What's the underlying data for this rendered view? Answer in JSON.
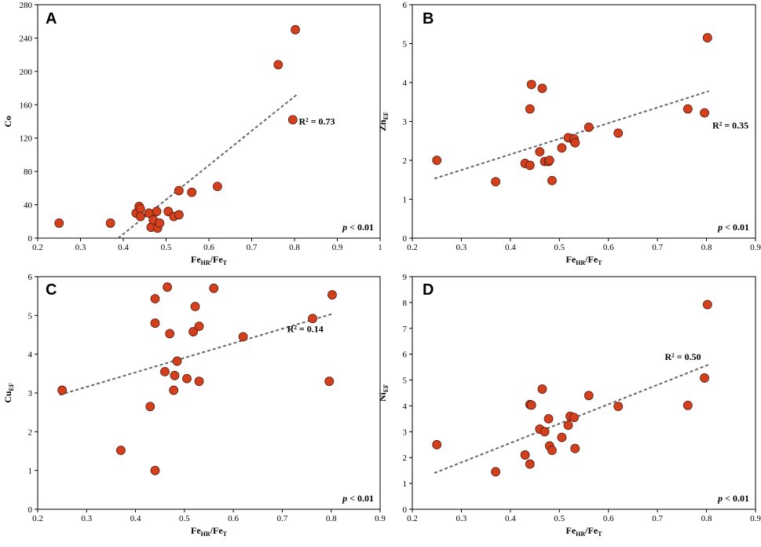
{
  "colors": {
    "point": "#d2401e",
    "trend": "#666666"
  },
  "chart_data": [
    {
      "type": "scatter",
      "panel": "A",
      "title": "",
      "xlabel": "Fe",
      "xlabel_sub": "HR",
      "xlabel_mid": "/Fe",
      "xlabel_sub2": "T",
      "ylabel": "Co",
      "ylabel_sub": "",
      "xlim": [
        0.2,
        1.0
      ],
      "ylim": [
        0,
        280
      ],
      "xticks": [
        0.2,
        0.3,
        0.4,
        0.5,
        0.6,
        0.7,
        0.8,
        0.9,
        1
      ],
      "xtick_labels": [
        "0.2",
        "0.3",
        "0.4",
        "0.5",
        "0.6",
        "0.7",
        "0.8",
        "0.9",
        "1"
      ],
      "yticks": [
        0,
        40,
        80,
        120,
        160,
        200,
        240,
        280
      ],
      "ytick_labels": [
        "0",
        "40",
        "80",
        "120",
        "160",
        "200",
        "240",
        "280"
      ],
      "points": [
        [
          0.25,
          18
        ],
        [
          0.37,
          18
        ],
        [
          0.43,
          30
        ],
        [
          0.437,
          38
        ],
        [
          0.44,
          35
        ],
        [
          0.44,
          26
        ],
        [
          0.46,
          30
        ],
        [
          0.465,
          13
        ],
        [
          0.47,
          22
        ],
        [
          0.478,
          32
        ],
        [
          0.48,
          12
        ],
        [
          0.485,
          18
        ],
        [
          0.505,
          32
        ],
        [
          0.518,
          26
        ],
        [
          0.53,
          57
        ],
        [
          0.53,
          28
        ],
        [
          0.56,
          55
        ],
        [
          0.62,
          62
        ],
        [
          0.762,
          208
        ],
        [
          0.796,
          142
        ],
        [
          0.802,
          250
        ]
      ],
      "trend": [
        [
          0.388,
          0
        ],
        [
          0.805,
          172
        ]
      ],
      "r2_label": "R² = 0.73",
      "r2_at": [
        0.81,
        140
      ],
      "p_label": "< 0.01",
      "p_prefix": "p"
    },
    {
      "type": "scatter",
      "panel": "B",
      "title": "",
      "xlabel": "Fe",
      "xlabel_sub": "HR",
      "xlabel_mid": "/Fe",
      "xlabel_sub2": "T",
      "ylabel": "Zn",
      "ylabel_sub": "EF",
      "xlim": [
        0.2,
        0.9
      ],
      "ylim": [
        0,
        6
      ],
      "xticks": [
        0.2,
        0.3,
        0.4,
        0.5,
        0.6,
        0.7,
        0.8,
        0.9
      ],
      "xtick_labels": [
        "0.2",
        "0.3",
        "0.4",
        "0.5",
        "0.6",
        "0.7",
        "0.8",
        "0.9"
      ],
      "yticks": [
        0,
        1,
        2,
        3,
        4,
        5,
        6
      ],
      "ytick_labels": [
        "0",
        "1",
        "2",
        "3",
        "4",
        "5",
        "6"
      ],
      "points": [
        [
          0.25,
          2.0
        ],
        [
          0.37,
          1.45
        ],
        [
          0.43,
          1.92
        ],
        [
          0.44,
          1.87
        ],
        [
          0.44,
          3.32
        ],
        [
          0.443,
          3.95
        ],
        [
          0.46,
          2.22
        ],
        [
          0.465,
          3.85
        ],
        [
          0.47,
          1.97
        ],
        [
          0.478,
          1.97
        ],
        [
          0.48,
          2.0
        ],
        [
          0.485,
          1.48
        ],
        [
          0.505,
          2.32
        ],
        [
          0.518,
          2.58
        ],
        [
          0.53,
          2.5
        ],
        [
          0.53,
          2.55
        ],
        [
          0.532,
          2.45
        ],
        [
          0.56,
          2.85
        ],
        [
          0.62,
          2.7
        ],
        [
          0.762,
          3.32
        ],
        [
          0.796,
          3.22
        ],
        [
          0.802,
          5.15
        ]
      ],
      "trend": [
        [
          0.245,
          1.53
        ],
        [
          0.805,
          3.78
        ]
      ],
      "r2_label": "R² = 0.35",
      "r2_at": [
        0.812,
        2.9
      ],
      "p_label": "< 0.01",
      "p_prefix": "p"
    },
    {
      "type": "scatter",
      "panel": "C",
      "title": "",
      "xlabel": "Fe",
      "xlabel_sub": "HR",
      "xlabel_mid": "/Fe",
      "xlabel_sub2": "T",
      "ylabel": "Cu",
      "ylabel_sub": "EF",
      "xlim": [
        0.2,
        0.9
      ],
      "ylim": [
        0,
        6
      ],
      "xticks": [
        0.2,
        0.3,
        0.4,
        0.5,
        0.6,
        0.7,
        0.8,
        0.9
      ],
      "xtick_labels": [
        "0.2",
        "0.3",
        "0.4",
        "0.5",
        "0.6",
        "0.7",
        "0.8",
        "0.9"
      ],
      "yticks": [
        0,
        1,
        2,
        3,
        4,
        5,
        6
      ],
      "ytick_labels": [
        "0",
        "1",
        "2",
        "3",
        "4",
        "5",
        "6"
      ],
      "points": [
        [
          0.25,
          3.07
        ],
        [
          0.37,
          1.52
        ],
        [
          0.43,
          2.65
        ],
        [
          0.44,
          1.0
        ],
        [
          0.44,
          5.43
        ],
        [
          0.44,
          4.8
        ],
        [
          0.46,
          3.55
        ],
        [
          0.465,
          5.73
        ],
        [
          0.47,
          4.53
        ],
        [
          0.478,
          3.07
        ],
        [
          0.48,
          3.45
        ],
        [
          0.485,
          3.82
        ],
        [
          0.505,
          3.37
        ],
        [
          0.518,
          4.58
        ],
        [
          0.522,
          5.23
        ],
        [
          0.53,
          4.72
        ],
        [
          0.53,
          3.3
        ],
        [
          0.56,
          5.7
        ],
        [
          0.62,
          4.45
        ],
        [
          0.762,
          4.92
        ],
        [
          0.796,
          3.3
        ],
        [
          0.802,
          5.53
        ]
      ],
      "trend": [
        [
          0.245,
          2.95
        ],
        [
          0.805,
          5.05
        ]
      ],
      "r2_label": "R² = 0.14",
      "r2_at": [
        0.71,
        4.65
      ],
      "p_label": "< 0.01",
      "p_prefix": "p"
    },
    {
      "type": "scatter",
      "panel": "D",
      "title": "",
      "xlabel": "Fe",
      "xlabel_sub": "HR",
      "xlabel_mid": "/Fe",
      "xlabel_sub2": "T",
      "ylabel": "Ni",
      "ylabel_sub": "EF",
      "xlim": [
        0.2,
        0.9
      ],
      "ylim": [
        0,
        9
      ],
      "xticks": [
        0.2,
        0.3,
        0.4,
        0.5,
        0.6,
        0.7,
        0.8,
        0.9
      ],
      "xtick_labels": [
        "0.2",
        "0.3",
        "0.4",
        "0.5",
        "0.6",
        "0.7",
        "0.8",
        "0.9"
      ],
      "yticks": [
        0,
        1,
        2,
        3,
        4,
        5,
        6,
        7,
        8,
        9
      ],
      "ytick_labels": [
        "0",
        "1",
        "2",
        "3",
        "4",
        "5",
        "6",
        "7",
        "8",
        "9"
      ],
      "points": [
        [
          0.25,
          2.5
        ],
        [
          0.37,
          1.45
        ],
        [
          0.43,
          2.1
        ],
        [
          0.44,
          1.75
        ],
        [
          0.44,
          4.05
        ],
        [
          0.443,
          4.03
        ],
        [
          0.46,
          3.1
        ],
        [
          0.465,
          4.65
        ],
        [
          0.47,
          3.0
        ],
        [
          0.478,
          3.5
        ],
        [
          0.48,
          2.45
        ],
        [
          0.485,
          2.28
        ],
        [
          0.505,
          2.78
        ],
        [
          0.518,
          3.25
        ],
        [
          0.522,
          3.6
        ],
        [
          0.53,
          3.55
        ],
        [
          0.532,
          2.35
        ],
        [
          0.56,
          4.4
        ],
        [
          0.62,
          3.98
        ],
        [
          0.762,
          4.02
        ],
        [
          0.796,
          5.08
        ],
        [
          0.802,
          7.92
        ]
      ],
      "trend": [
        [
          0.245,
          1.4
        ],
        [
          0.805,
          5.6
        ]
      ],
      "r2_label": "R² = 0.50",
      "r2_at": [
        0.715,
        5.9
      ],
      "p_label": "< 0.01",
      "p_prefix": "p"
    }
  ]
}
